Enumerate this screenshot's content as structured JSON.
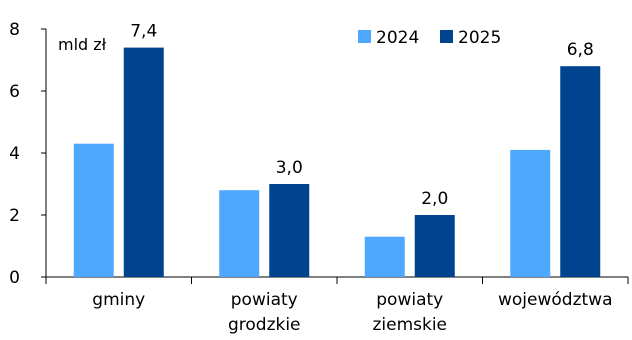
{
  "chart_data": {
    "type": "bar",
    "unit_label": "mld zł",
    "categories": [
      [
        "gminy"
      ],
      [
        "powiaty",
        "grodzkie"
      ],
      [
        "powiaty",
        "ziemskie"
      ],
      [
        "województwa"
      ]
    ],
    "series": [
      {
        "name": "2024",
        "color": "#4fa8ff",
        "values": [
          4.3,
          2.8,
          1.3,
          4.1
        ],
        "labels": [
          "",
          "",
          "",
          ""
        ]
      },
      {
        "name": "2025",
        "color": "#00438f",
        "values": [
          7.4,
          3.0,
          2.0,
          6.8
        ],
        "labels": [
          "7,4",
          "3,0",
          "2,0",
          "6,8"
        ]
      }
    ],
    "ylim": [
      0,
      8
    ],
    "yticks": [
      "0",
      "2",
      "4",
      "6",
      "8"
    ],
    "ytick_values": [
      0,
      2,
      4,
      6,
      8
    ],
    "legend_position": "top-right",
    "grid": false
  }
}
